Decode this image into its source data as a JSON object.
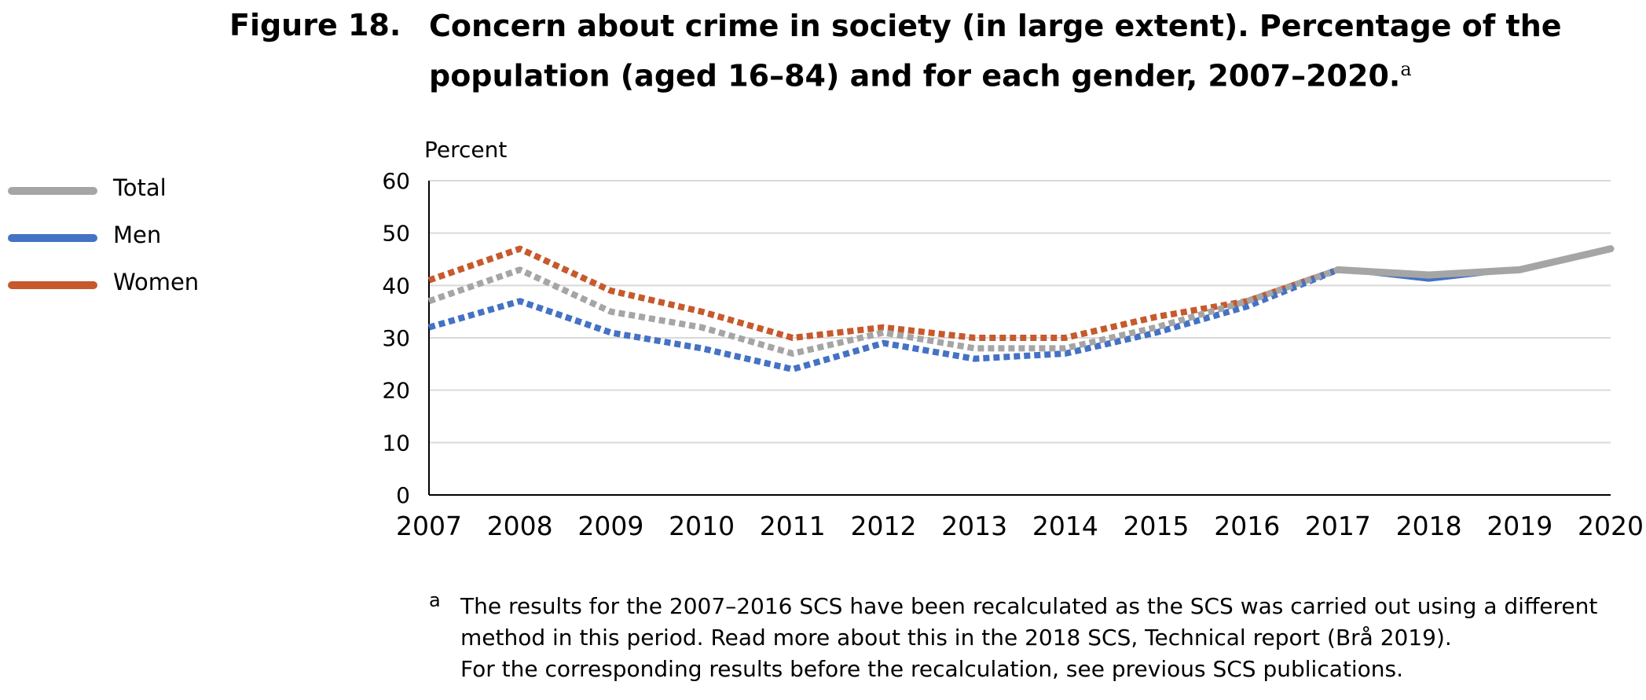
{
  "figure": {
    "number": "Figure 18.",
    "title": "Concern about crime in society (in large extent). Percentage of the population (aged 16–84) and for each gender, 2007–2020.",
    "title_note_mark": "a"
  },
  "legend": {
    "items": [
      {
        "label": "Total",
        "color": "#a5a5a5"
      },
      {
        "label": "Men",
        "color": "#4472c4"
      },
      {
        "label": "Women",
        "color": "#c65a2c"
      }
    ]
  },
  "chart_data": {
    "type": "line",
    "title": "Concern about crime in society (in large extent). Percentage of the population (aged 16–84) and for each gender, 2007–2020.",
    "ylabel": "Percent",
    "xlabel": "",
    "ylim": [
      0,
      60
    ],
    "yticks": [
      "0",
      "10",
      "20",
      "30",
      "40",
      "50",
      "60"
    ],
    "x": [
      "2007",
      "2008",
      "2009",
      "2010",
      "2011",
      "2012",
      "2013",
      "2014",
      "2015",
      "2016",
      "2017",
      "2018",
      "2019",
      "2020"
    ],
    "recalculated_until": "2017",
    "grid": true,
    "legend_position": "left",
    "series": [
      {
        "name": "Women",
        "color": "#c65a2c",
        "values": [
          41,
          47,
          39,
          35,
          30,
          32,
          30,
          30,
          34,
          37,
          43,
          42,
          43,
          47
        ]
      },
      {
        "name": "Men",
        "color": "#4472c4",
        "values": [
          32,
          37,
          31,
          28,
          24,
          29,
          26,
          27,
          31,
          36,
          43,
          41,
          43,
          47
        ]
      },
      {
        "name": "Total",
        "color": "#a5a5a5",
        "values": [
          37,
          43,
          35,
          32,
          27,
          31,
          28,
          28,
          32,
          37,
          43,
          42,
          43,
          47
        ]
      }
    ]
  },
  "footnote": {
    "mark": "a",
    "lines": [
      "The results for the 2007–2016 SCS have been recalculated as the SCS was carried out using a different",
      "method in this period. Read more about this in the 2018 SCS, Technical report (Brå 2019).",
      "For the corresponding results before the recalculation, see previous SCS publications."
    ]
  }
}
